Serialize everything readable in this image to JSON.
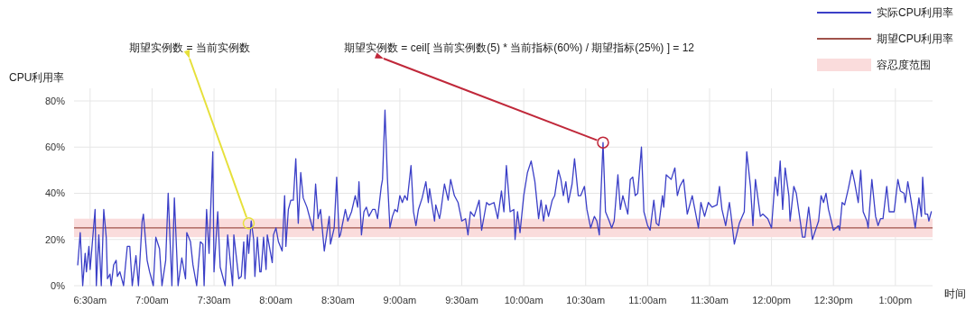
{
  "chart_data": {
    "type": "line",
    "xlabel": "时间",
    "ylabel": "CPU利用率",
    "grid": true,
    "legend": "top right",
    "xlim": [
      6.37,
      13.3
    ],
    "ylim": [
      0,
      80
    ],
    "xticks": [
      {
        "value": 6.5,
        "label": "6:30am"
      },
      {
        "value": 7,
        "label": "7:00am"
      },
      {
        "value": 7.5,
        "label": "7:30am"
      },
      {
        "value": 8,
        "label": "8:00am"
      },
      {
        "value": 8.5,
        "label": "8:30am"
      },
      {
        "value": 9,
        "label": "9:00am"
      },
      {
        "value": 9.5,
        "label": "9:30am"
      },
      {
        "value": 10,
        "label": "10:00am"
      },
      {
        "value": 10.5,
        "label": "10:30am"
      },
      {
        "value": 11,
        "label": "11:00am"
      },
      {
        "value": 11.5,
        "label": "11:30am"
      },
      {
        "value": 12,
        "label": "12:00pm"
      },
      {
        "value": 12.5,
        "label": "12:30pm"
      },
      {
        "value": 13,
        "label": "1:00pm"
      }
    ],
    "yticks": [
      {
        "value": 0,
        "label": "0%"
      },
      {
        "value": 20,
        "label": "20%"
      },
      {
        "value": 40,
        "label": "40%"
      },
      {
        "value": 60,
        "label": "60%"
      },
      {
        "value": 80,
        "label": "80%"
      }
    ],
    "x": [
      6.4,
      6.42,
      6.44,
      6.46,
      6.47,
      6.49,
      6.5,
      6.52,
      6.54,
      6.55,
      6.57,
      6.59,
      6.61,
      6.63,
      6.64,
      6.66,
      6.67,
      6.69,
      6.71,
      6.72,
      6.74,
      6.77,
      6.8,
      6.82,
      6.84,
      6.87,
      6.89,
      6.92,
      6.93,
      6.96,
      6.98,
      7.01,
      7.03,
      7.06,
      7.08,
      7.11,
      7.13,
      7.16,
      7.18,
      7.21,
      7.24,
      7.27,
      7.28,
      7.31,
      7.33,
      7.36,
      7.39,
      7.41,
      7.42,
      7.44,
      7.46,
      7.49,
      7.5,
      7.53,
      7.55,
      7.59,
      7.61,
      7.65,
      7.66,
      7.7,
      7.72,
      7.74,
      7.75,
      7.77,
      7.78,
      7.8,
      7.82,
      7.83,
      7.85,
      7.87,
      7.88,
      7.9,
      7.92,
      7.93,
      7.97,
      7.98,
      8.0,
      8.02,
      8.05,
      8.07,
      8.08,
      8.1,
      8.12,
      8.14,
      8.16,
      8.18,
      8.2,
      8.22,
      8.25,
      8.28,
      8.3,
      8.32,
      8.34,
      8.36,
      8.39,
      8.43,
      8.44,
      8.47,
      8.49,
      8.51,
      8.52,
      8.56,
      8.58,
      8.61,
      8.64,
      8.66,
      8.67,
      8.69,
      8.71,
      8.73,
      8.75,
      8.78,
      8.8,
      8.82,
      8.85,
      8.86,
      8.88,
      8.9,
      8.92,
      8.94,
      8.96,
      8.98,
      9.0,
      9.02,
      9.04,
      9.06,
      9.09,
      9.11,
      9.13,
      9.15,
      9.18,
      9.21,
      9.23,
      9.24,
      9.28,
      9.29,
      9.32,
      9.33,
      9.36,
      9.39,
      9.41,
      9.44,
      9.47,
      9.5,
      9.53,
      9.55,
      9.57,
      9.6,
      9.64,
      9.66,
      9.7,
      9.72,
      9.76,
      9.79,
      9.82,
      9.84,
      9.86,
      9.89,
      9.92,
      9.93,
      9.95,
      9.97,
      10.0,
      10.03,
      10.06,
      10.09,
      10.12,
      10.14,
      10.16,
      10.18,
      10.2,
      10.23,
      10.25,
      10.28,
      10.3,
      10.32,
      10.34,
      10.36,
      10.39,
      10.41,
      10.44,
      10.46,
      10.49,
      10.51,
      10.54,
      10.57,
      10.59,
      10.61,
      10.64,
      10.66,
      10.69,
      10.71,
      10.73,
      10.76,
      10.78,
      10.8,
      10.84,
      10.86,
      10.88,
      10.9,
      10.92,
      10.95,
      10.97,
      11.0,
      11.02,
      11.05,
      11.07,
      11.09,
      11.12,
      11.13,
      11.15,
      11.19,
      11.22,
      11.24,
      11.26,
      11.29,
      11.32,
      11.36,
      11.41,
      11.43,
      11.46,
      11.49,
      11.52,
      11.56,
      11.58,
      11.6,
      11.63,
      11.66,
      11.67,
      11.7,
      11.74,
      11.78,
      11.8,
      11.83,
      11.85,
      11.87,
      11.91,
      11.93,
      11.97,
      12.0,
      12.03,
      12.05,
      12.07,
      12.09,
      12.11,
      12.14,
      12.15,
      12.18,
      12.2,
      12.25,
      12.27,
      12.3,
      12.33,
      12.38,
      12.4,
      12.42,
      12.44,
      12.46,
      12.5,
      12.54,
      12.55,
      12.57,
      12.59,
      12.62,
      12.65,
      12.67,
      12.7,
      12.72,
      12.74,
      12.77,
      12.78,
      12.81,
      12.84,
      12.86,
      12.88,
      12.9,
      12.93,
      12.95,
      12.99,
      13.02,
      13.04,
      13.07,
      13.08,
      13.1,
      13.12,
      13.16,
      13.19,
      13.21,
      13.22,
      13.24,
      13.26,
      13.27,
      13.29
    ],
    "series": [
      {
        "name": "实际CPU利用率",
        "color": "#3b3fc7",
        "values": [
          9,
          23,
          0,
          14,
          6,
          17,
          7,
          20,
          33,
          0,
          22,
          0,
          33,
          21,
          3,
          5,
          0,
          9,
          11,
          4,
          6,
          0,
          17,
          17,
          0,
          13,
          0,
          28,
          31,
          11,
          6,
          0,
          21,
          16,
          0,
          11,
          40,
          0,
          38,
          0,
          12,
          3,
          23,
          19,
          9,
          0,
          19,
          18,
          0,
          33,
          14,
          58,
          6,
          32,
          8,
          0,
          22,
          0,
          22,
          3,
          4,
          19,
          3,
          22,
          14,
          28,
          20,
          4,
          21,
          6,
          6,
          21,
          7,
          22,
          10,
          22,
          25,
          19,
          15,
          39,
          17,
          33,
          37,
          37,
          55,
          27,
          49,
          38,
          34,
          28,
          24,
          44,
          29,
          33,
          15,
          30,
          18,
          25,
          47,
          21,
          22,
          33,
          28,
          32,
          39,
          34,
          45,
          22,
          32,
          34,
          30,
          33,
          33,
          29,
          43,
          46,
          76,
          46,
          25,
          30,
          33,
          32,
          39,
          36,
          39,
          37,
          52,
          32,
          26,
          33,
          38,
          45,
          36,
          42,
          28,
          35,
          29,
          32,
          44,
          37,
          46,
          39,
          36,
          28,
          29,
          22,
          32,
          30,
          37,
          24,
          36,
          35,
          36,
          29,
          41,
          32,
          52,
          32,
          33,
          20,
          32,
          23,
          39,
          49,
          54,
          45,
          29,
          37,
          28,
          35,
          30,
          37,
          39,
          50,
          46,
          39,
          45,
          36,
          44,
          55,
          39,
          39,
          43,
          33,
          25,
          30,
          28,
          22,
          62,
          32,
          28,
          25,
          28,
          48,
          33,
          39,
          31,
          46,
          47,
          39,
          40,
          60,
          32,
          26,
          24,
          37,
          27,
          26,
          39,
          34,
          48,
          46,
          51,
          39,
          43,
          46,
          31,
          39,
          25,
          36,
          30,
          36,
          34,
          35,
          43,
          33,
          26,
          36,
          32,
          18,
          27,
          32,
          58,
          43,
          26,
          46,
          30,
          31,
          29,
          25,
          47,
          39,
          54,
          33,
          51,
          39,
          28,
          43,
          40,
          21,
          21,
          34,
          20,
          28,
          39,
          36,
          40,
          33,
          24,
          26,
          24,
          36,
          35,
          42,
          50,
          45,
          36,
          50,
          32,
          28,
          25,
          46,
          30,
          26,
          29,
          29,
          43,
          32,
          32,
          46,
          41,
          40,
          36,
          45,
          39,
          25,
          38,
          30,
          47,
          31,
          31,
          28,
          32
        ]
      }
    ],
    "ref_lines": [
      {
        "axis": "y",
        "value": 25,
        "label": "期望CPU利用率",
        "color": "#a0524a"
      }
    ],
    "bands": [
      {
        "axis": "y",
        "from": 21,
        "to": 29,
        "label": "容忍度范围",
        "color": "#fadcdc"
      }
    ],
    "annotations": [
      {
        "text": "期望实例数 = 当前实例数",
        "x": 7.78,
        "y": 27
      },
      {
        "text": "期望实例数 = ceil[ 当前实例数(5) * 当前指标(60%) / 期望指标(25%) ] = 12",
        "x": 10.64,
        "y": 62
      }
    ]
  }
}
